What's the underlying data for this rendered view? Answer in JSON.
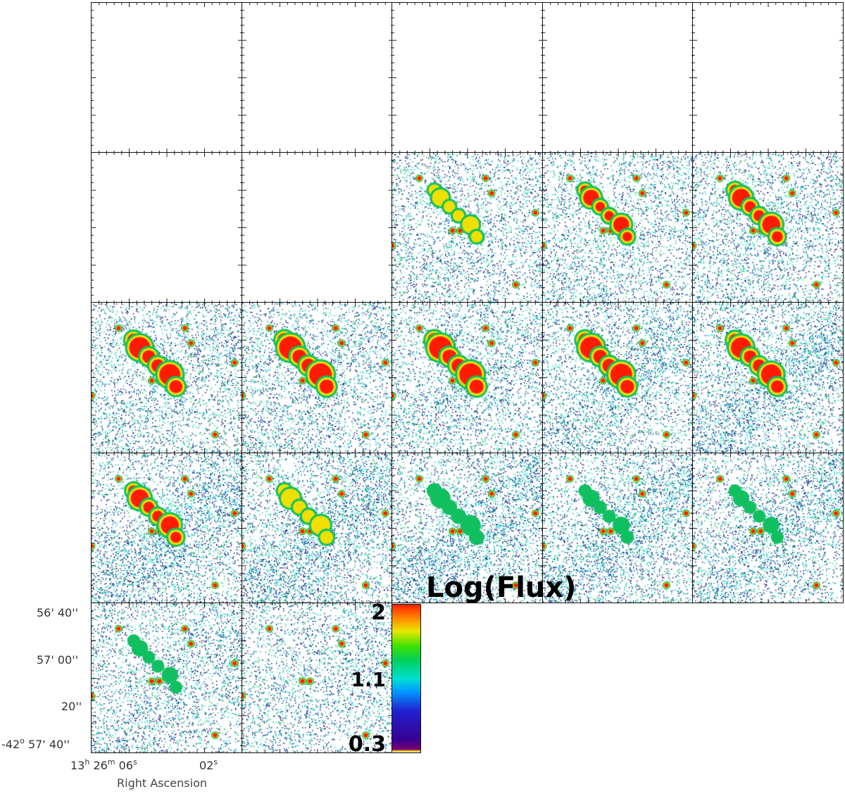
{
  "grid": {
    "rows": 5,
    "cols": 5,
    "panels": [
      {
        "row": 0,
        "col": 0,
        "filled": false,
        "emission": 0
      },
      {
        "row": 0,
        "col": 1,
        "filled": false,
        "emission": 0
      },
      {
        "row": 0,
        "col": 2,
        "filled": false,
        "emission": 0
      },
      {
        "row": 0,
        "col": 3,
        "filled": false,
        "emission": 0
      },
      {
        "row": 0,
        "col": 4,
        "filled": false,
        "emission": 0
      },
      {
        "row": 1,
        "col": 0,
        "filled": false,
        "emission": 0
      },
      {
        "row": 1,
        "col": 1,
        "filled": false,
        "emission": 0
      },
      {
        "row": 1,
        "col": 2,
        "filled": true,
        "emission": 0.35,
        "diffuse": 0.15
      },
      {
        "row": 1,
        "col": 3,
        "filled": true,
        "emission": 0.55,
        "diffuse": 0.15
      },
      {
        "row": 1,
        "col": 4,
        "filled": true,
        "emission": 0.7,
        "diffuse": 0.2
      },
      {
        "row": 2,
        "col": 0,
        "filled": true,
        "emission": 0.9,
        "diffuse": 0.2
      },
      {
        "row": 2,
        "col": 1,
        "filled": true,
        "emission": 1.0,
        "diffuse": 0.2
      },
      {
        "row": 2,
        "col": 2,
        "filled": true,
        "emission": 1.0,
        "diffuse": 0.3
      },
      {
        "row": 2,
        "col": 3,
        "filled": true,
        "emission": 0.95,
        "diffuse": 0.45
      },
      {
        "row": 2,
        "col": 4,
        "filled": true,
        "emission": 0.85,
        "diffuse": 0.55
      },
      {
        "row": 3,
        "col": 0,
        "filled": true,
        "emission": 0.7,
        "diffuse": 0.75
      },
      {
        "row": 3,
        "col": 1,
        "filled": true,
        "emission": 0.5,
        "diffuse": 0.8
      },
      {
        "row": 3,
        "col": 2,
        "filled": true,
        "emission": 0.3,
        "diffuse": 0.75
      },
      {
        "row": 3,
        "col": 3,
        "filled": true,
        "emission": 0.1,
        "diffuse": 0.6
      },
      {
        "row": 3,
        "col": 4,
        "filled": true,
        "emission": 0.05,
        "diffuse": 0.5
      },
      {
        "row": 4,
        "col": 0,
        "filled": true,
        "emission": 0.05,
        "diffuse": 0.3
      },
      {
        "row": 4,
        "col": 1,
        "filled": true,
        "emission": 0.0,
        "diffuse": 0.15
      }
    ]
  },
  "axes": {
    "y_ticks": [
      {
        "deg": "",
        "min": "56'",
        "sec": "40''"
      },
      {
        "deg": "",
        "min": "57'",
        "sec": "00''"
      },
      {
        "deg": "",
        "min": "",
        "sec": "20''"
      },
      {
        "deg": "-42",
        "min": "57'",
        "sec": "40''"
      }
    ],
    "y_deg_sup": "o",
    "x_ticks": [
      {
        "h": "13",
        "h_sup": "h",
        "m": "26",
        "m_sup": "m",
        "s": "06",
        "s_sup": "s"
      },
      {
        "s": "02",
        "s_sup": "s"
      }
    ],
    "xlabel": "Right Ascension"
  },
  "colorbar": {
    "title": "Log(Flux)",
    "ticks": [
      "2",
      "1.1",
      "0.3"
    ],
    "max": 2,
    "mid": 1.1,
    "min": 0.3
  },
  "colors": {
    "frame": "#111111",
    "noise_dark": "#0a1a80",
    "noise_cyan": "#00c8d0",
    "noise_green": "#10c060",
    "source_red": "#ff1a00",
    "source_yellow": "#f0e000"
  }
}
